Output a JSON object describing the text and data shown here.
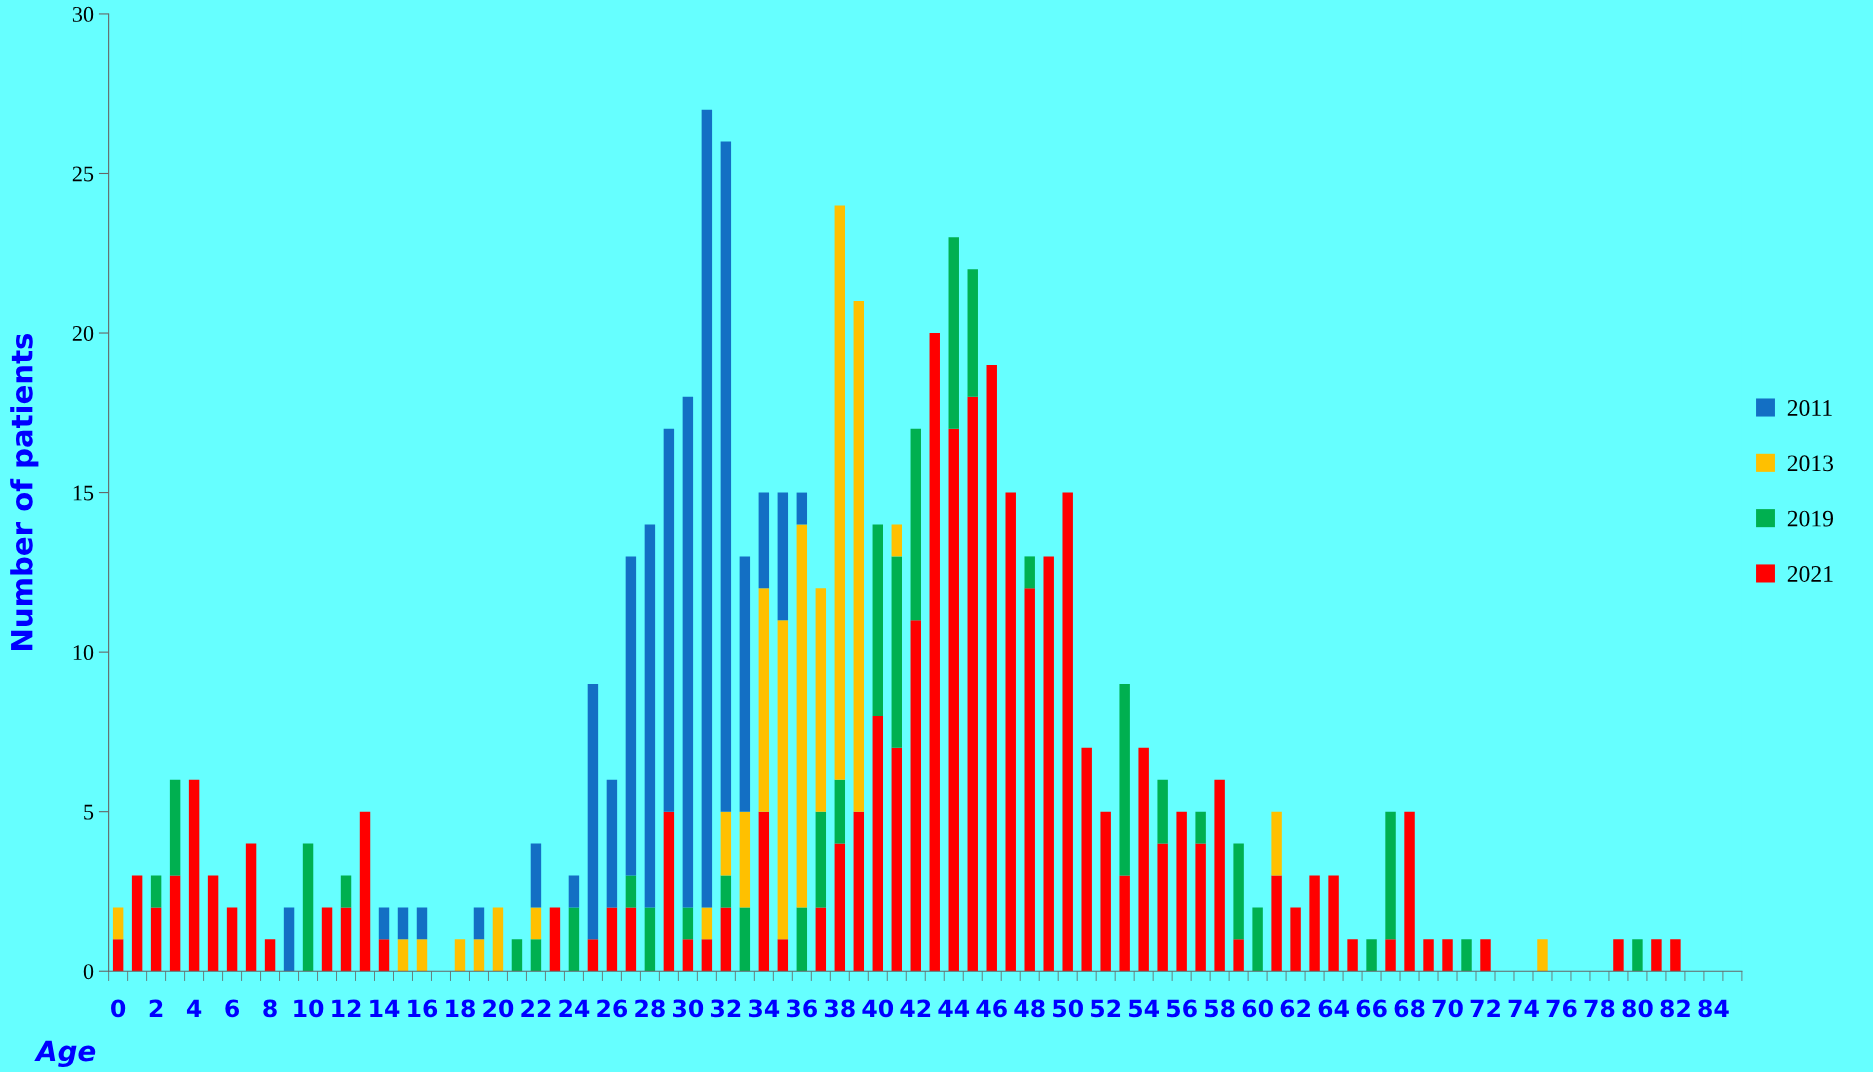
{
  "chart_data": {
    "type": "bar",
    "stacked": true,
    "xlabel": "Age",
    "ylabel": "Number of patients",
    "categories": [
      "0",
      null,
      "2",
      null,
      "4",
      null,
      "6",
      null,
      "8",
      null,
      "10",
      null,
      "12",
      null,
      "14",
      null,
      "16",
      null,
      "18",
      null,
      "20",
      null,
      "22",
      null,
      "24",
      null,
      "26",
      null,
      "28",
      null,
      "30",
      null,
      "32",
      null,
      "34",
      null,
      "36",
      null,
      "38",
      null,
      "40",
      null,
      "42",
      null,
      "44",
      null,
      "46",
      null,
      "48",
      null,
      "50",
      null,
      "52",
      null,
      "54",
      null,
      "56",
      null,
      "58",
      null,
      "60",
      null,
      "62",
      null,
      "64",
      null,
      "66",
      null,
      "68",
      null,
      "70",
      null,
      "72",
      null,
      "74",
      null,
      "76",
      null,
      "78",
      null,
      "80",
      null,
      "82",
      null,
      "84",
      null
    ],
    "series": [
      {
        "name": "2021",
        "color": "#ff0000",
        "values": [
          1,
          3,
          2,
          3,
          6,
          3,
          2,
          4,
          1,
          0,
          0,
          2,
          2,
          5,
          1,
          0,
          0,
          0,
          0,
          0,
          0,
          0,
          0,
          2,
          0,
          1,
          2,
          2,
          0,
          5,
          1,
          1,
          2,
          0,
          5,
          1,
          0,
          2,
          4,
          5,
          8,
          7,
          11,
          20,
          17,
          18,
          19,
          15,
          12,
          13,
          15,
          7,
          5,
          3,
          7,
          4,
          5,
          4,
          6,
          1,
          0,
          3,
          2,
          3,
          3,
          1,
          0,
          1,
          5,
          1,
          1,
          0,
          1,
          0,
          0,
          0,
          0,
          0,
          0,
          1,
          0,
          1,
          1,
          0,
          0,
          0
        ]
      },
      {
        "name": "2019",
        "color": "#00b050",
        "values": [
          0,
          0,
          1,
          3,
          0,
          0,
          0,
          0,
          0,
          0,
          4,
          0,
          1,
          0,
          0,
          0,
          0,
          0,
          0,
          0,
          0,
          1,
          1,
          0,
          2,
          0,
          0,
          1,
          2,
          0,
          1,
          0,
          1,
          2,
          0,
          0,
          2,
          3,
          2,
          0,
          6,
          6,
          6,
          0,
          6,
          4,
          0,
          0,
          1,
          0,
          0,
          0,
          0,
          6,
          0,
          2,
          0,
          1,
          0,
          3,
          2,
          0,
          0,
          0,
          0,
          0,
          1,
          4,
          0,
          0,
          0,
          1,
          0,
          0,
          0,
          0,
          0,
          0,
          0,
          0,
          1,
          0,
          0,
          0,
          0,
          0
        ]
      },
      {
        "name": "2013",
        "color": "#ffc000",
        "values": [
          1,
          0,
          0,
          0,
          0,
          0,
          0,
          0,
          0,
          0,
          0,
          0,
          0,
          0,
          0,
          1,
          1,
          0,
          1,
          1,
          2,
          0,
          1,
          0,
          0,
          0,
          0,
          0,
          0,
          0,
          0,
          1,
          2,
          3,
          7,
          10,
          12,
          7,
          18,
          16,
          0,
          1,
          0,
          0,
          0,
          0,
          0,
          0,
          0,
          0,
          0,
          0,
          0,
          0,
          0,
          0,
          0,
          0,
          0,
          0,
          0,
          2,
          0,
          0,
          0,
          0,
          0,
          0,
          0,
          0,
          0,
          0,
          0,
          0,
          0,
          1,
          0,
          0,
          0,
          0,
          0,
          0,
          0,
          0,
          0,
          0
        ]
      },
      {
        "name": "2011",
        "color": "#136fc4",
        "values": [
          0,
          0,
          0,
          0,
          0,
          0,
          0,
          0,
          0,
          2,
          0,
          0,
          0,
          0,
          1,
          1,
          1,
          0,
          0,
          1,
          0,
          0,
          2,
          0,
          1,
          8,
          4,
          10,
          12,
          12,
          16,
          25,
          21,
          8,
          3,
          4,
          1,
          0,
          0,
          0,
          0,
          0,
          0,
          0,
          0,
          0,
          0,
          0,
          0,
          0,
          0,
          0,
          0,
          0,
          0,
          0,
          0,
          0,
          0,
          0,
          0,
          0,
          0,
          0,
          0,
          0,
          0,
          0,
          0,
          0,
          0,
          0,
          0,
          0,
          0,
          0,
          0,
          0,
          0,
          0,
          0,
          0,
          0,
          0,
          0,
          0
        ]
      }
    ],
    "ylim": [
      0,
      30
    ],
    "yticks": [
      0,
      5,
      10,
      15,
      20,
      25,
      30
    ],
    "grid": false,
    "legend": "right"
  }
}
